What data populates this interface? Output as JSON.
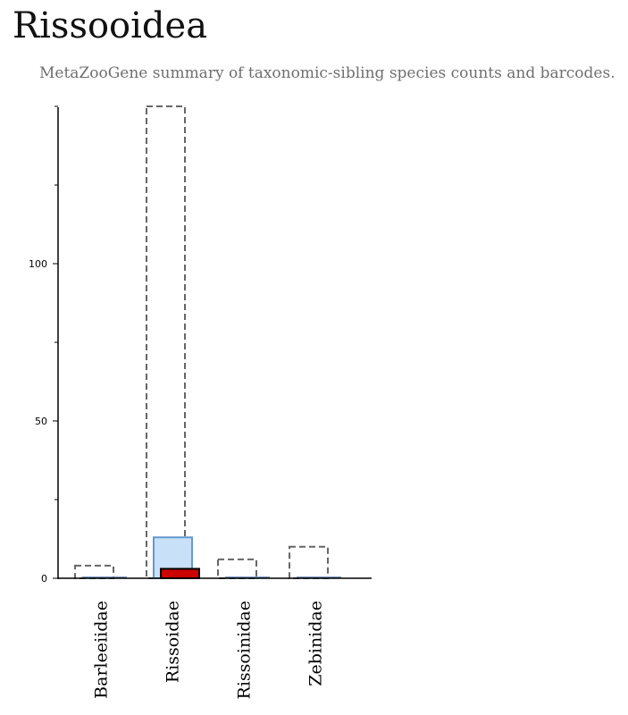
{
  "page": {
    "title": "Rissooidea",
    "subtitle": "MetaZooGene summary of taxonomic-sibling species counts and barcodes."
  },
  "chart_data": {
    "type": "bar",
    "title": "Rissooidea",
    "subtitle": "MetaZooGene summary of taxonomic-sibling species counts and barcodes.",
    "categories": [
      "Barleeiidae",
      "Rissoidae",
      "Rissoinidae",
      "Zebinidae"
    ],
    "series": [
      {
        "role": "outline",
        "values": [
          4,
          150,
          6,
          10
        ],
        "color": "#666666",
        "style": "dashed"
      },
      {
        "role": "fill",
        "values": [
          0,
          13,
          0,
          0
        ],
        "color": "#c8e0f8",
        "stroke": "#6699cc"
      },
      {
        "role": "highlight",
        "values": [
          0,
          3,
          0,
          0
        ],
        "color": "#cc0000",
        "stroke": "#000000"
      }
    ],
    "yticks": [
      0,
      50,
      100
    ],
    "ylim": [
      0,
      150
    ],
    "xlabel": "",
    "ylabel": "",
    "grid": false,
    "legend": "none"
  }
}
